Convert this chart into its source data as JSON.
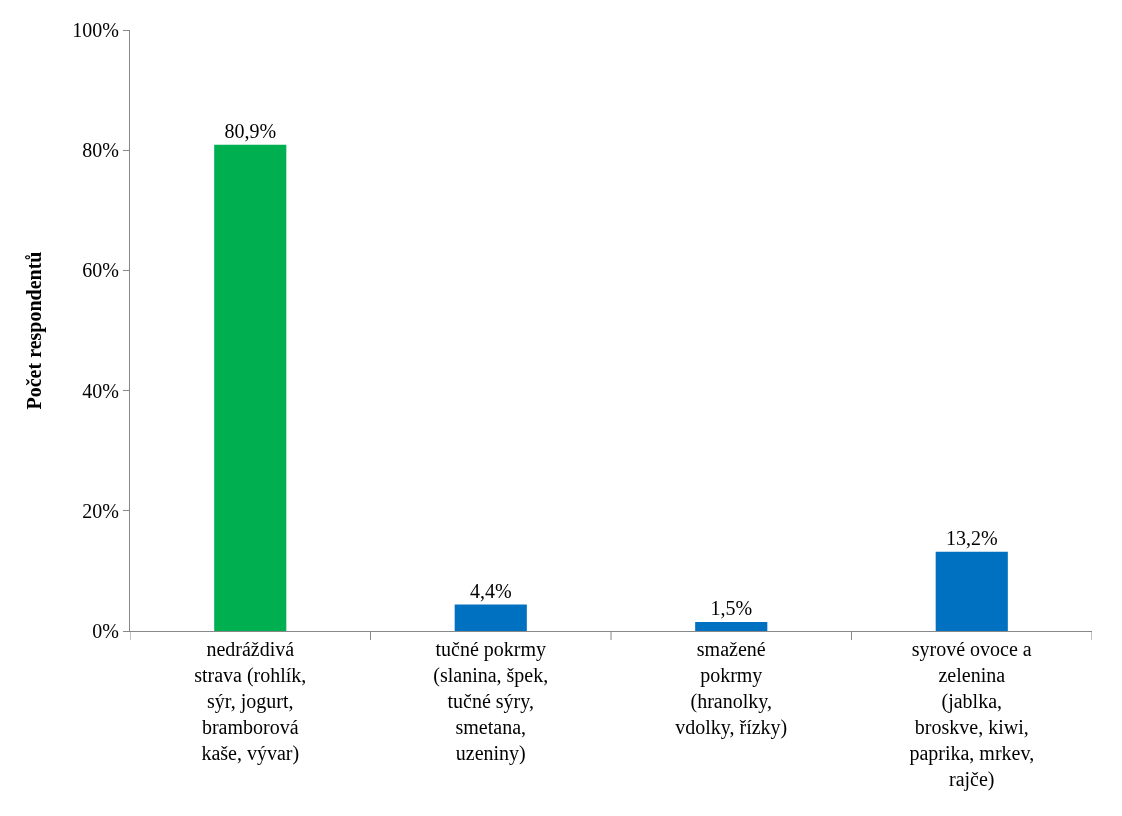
{
  "chart_data": {
    "type": "bar",
    "ylabel": "Počet respondentů",
    "categories": [
      "nedráždivá\nstrava (rohlík,\nsýr, jogurt,\nbramborová\nkaše, vývar)",
      "tučné pokrmy\n(slanina, špek,\ntučné sýry,\nsmetana,\nuzeniny)",
      "smažené\npokrmy\n(hranolky,\nvdolky, řízky)",
      "syrové ovoce a\nzelenina\n(jablka,\nbroskve, kiwi,\npaprika, mrkev,\nrajče)"
    ],
    "values": [
      80.9,
      4.4,
      1.5,
      13.2
    ],
    "colors": [
      "#00b050",
      "#0070c0",
      "#0070c0",
      "#0070c0"
    ],
    "value_labels": [
      "80,9%",
      "4,4%",
      "1,5%",
      "13,2%"
    ],
    "ylim": [
      0,
      100
    ],
    "yticks": [
      {
        "value": 0,
        "label": "0%"
      },
      {
        "value": 20,
        "label": "20%"
      },
      {
        "value": 40,
        "label": "40%"
      },
      {
        "value": 60,
        "label": "60%"
      },
      {
        "value": 80,
        "label": "80%"
      },
      {
        "value": 100,
        "label": "100%"
      }
    ],
    "legend": false
  }
}
